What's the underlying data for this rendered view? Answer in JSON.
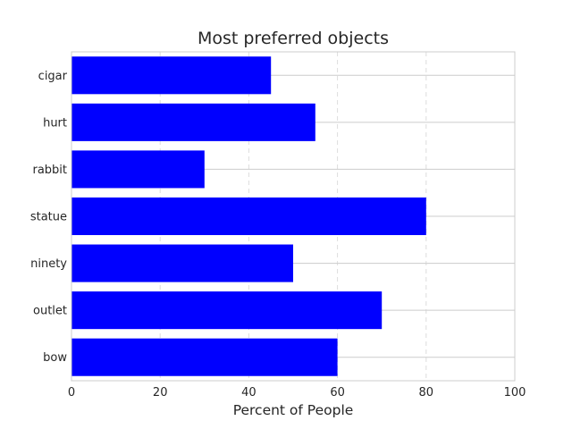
{
  "chart_data": {
    "type": "bar",
    "orientation": "horizontal",
    "title": "Most preferred objects",
    "xlabel": "Percent of People",
    "ylabel": "",
    "categories": [
      "cigar",
      "hurt",
      "rabbit",
      "statue",
      "ninety",
      "outlet",
      "bow"
    ],
    "values": [
      45,
      55,
      30,
      80,
      50,
      70,
      60
    ],
    "xlim": [
      0,
      100
    ],
    "xticks": [
      0,
      20,
      40,
      60,
      80,
      100
    ],
    "grid": true,
    "bar_color": "#0000ff"
  }
}
